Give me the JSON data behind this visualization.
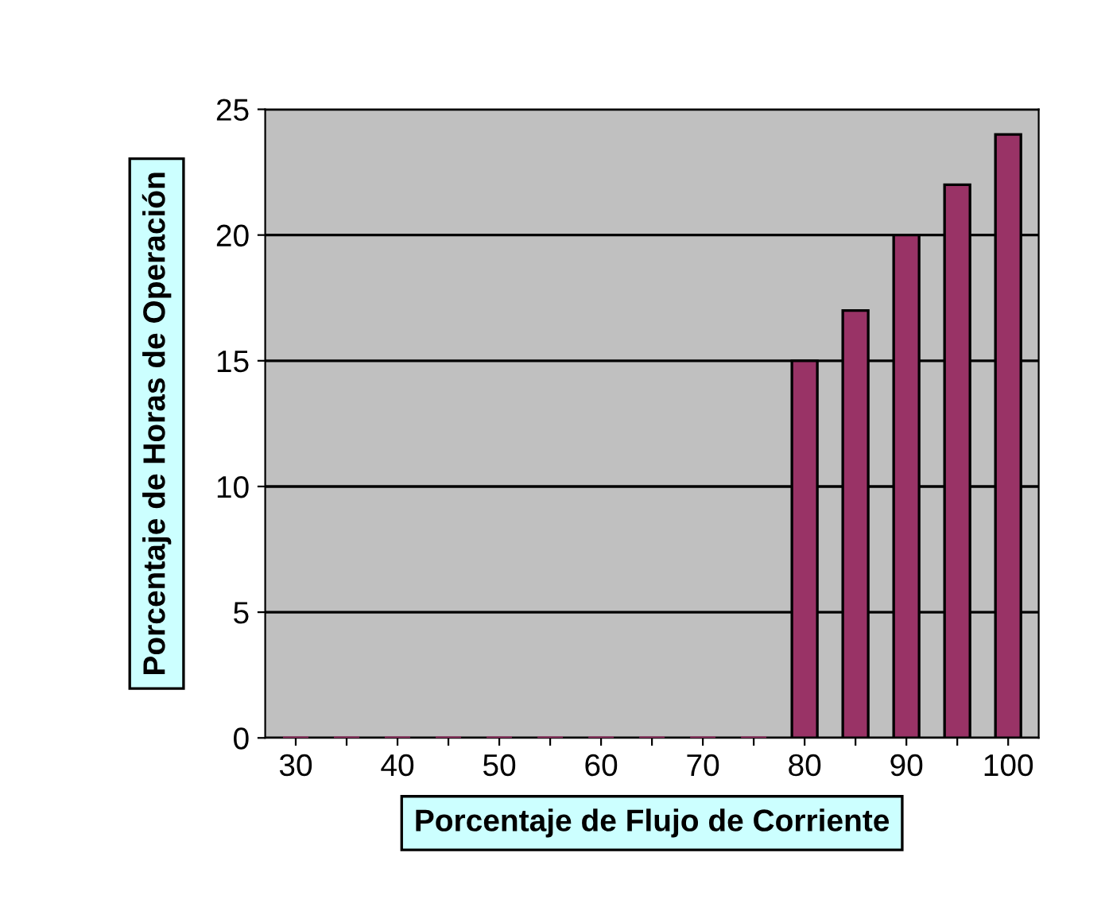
{
  "chart_data": {
    "type": "bar",
    "xlabel": "Porcentaje de Flujo de Corriente",
    "ylabel": "Porcentaje de Horas de Operación",
    "categories": [
      "30",
      null,
      "40",
      null,
      "50",
      null,
      "60",
      null,
      "70",
      null,
      "80",
      null,
      "90",
      null,
      "100"
    ],
    "values": [
      0,
      0,
      0,
      0,
      0,
      0,
      0,
      0,
      0,
      0,
      15,
      17,
      20,
      22,
      24
    ],
    "color": "#993366",
    "ylim": [
      0,
      25
    ],
    "yticks": [
      0,
      5,
      10,
      15,
      20,
      25
    ],
    "grid": "y"
  }
}
